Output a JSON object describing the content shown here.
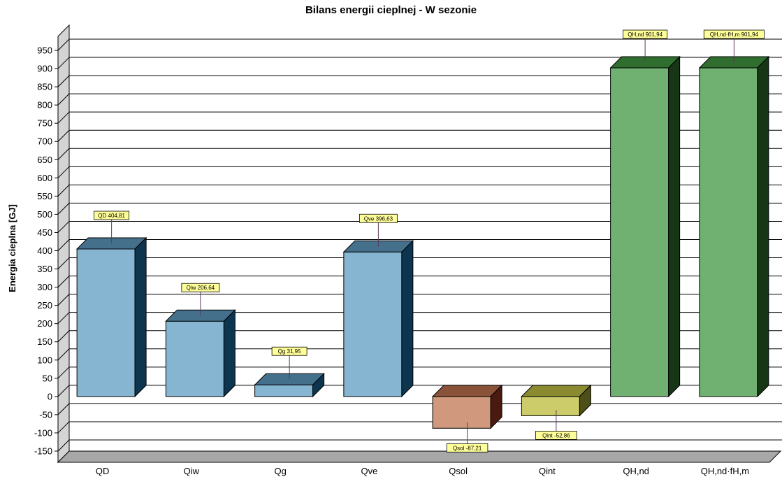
{
  "chart_data": {
    "type": "bar",
    "title": "Bilans energii cieplnej - W sezonie",
    "xlabel": "",
    "ylabel": "Energia cieplna [GJ]",
    "ylim": [
      -150,
      950
    ],
    "yticks": [
      950,
      900,
      850,
      800,
      750,
      700,
      650,
      600,
      550,
      500,
      450,
      400,
      350,
      300,
      250,
      200,
      150,
      100,
      50,
      0,
      -50,
      -100,
      -150
    ],
    "grid": true,
    "legend": "none",
    "bars": [
      {
        "category": "QD",
        "value": 404.81,
        "label": "QD 404,81",
        "color": "#85b5d0",
        "top_color": "#44708c",
        "side_color": "#0e3550"
      },
      {
        "category": "Qiw",
        "value": 206.64,
        "label": "Qiw 206,64",
        "color": "#85b5d0",
        "top_color": "#44708c",
        "side_color": "#0e3550"
      },
      {
        "category": "Qg",
        "value": 31.95,
        "label": "Qg 31,95",
        "color": "#85b5d0",
        "top_color": "#44708c",
        "side_color": "#0e3550"
      },
      {
        "category": "Qve",
        "value": 396.63,
        "label": "Qve 396,63",
        "color": "#85b5d0",
        "top_color": "#44708c",
        "side_color": "#0e3550"
      },
      {
        "category": "Qsol",
        "value": -87.21,
        "label": "Qsol -87,21",
        "color": "#d0987c",
        "top_color": "#8a5238",
        "side_color": "#4a1a10"
      },
      {
        "category": "Qint",
        "value": -52.86,
        "label": "Qint -52,86",
        "color": "#cccc6a",
        "top_color": "#8a8a30",
        "side_color": "#4e4e18"
      },
      {
        "category": "QH,nd",
        "value": 901.94,
        "label": "QH,nd 901,94",
        "color": "#70b070",
        "top_color": "#2f6e2f",
        "side_color": "#163616"
      },
      {
        "category": "QH,nd·fH,m",
        "value": 901.94,
        "label": "QH,nd·fH,m 901,94",
        "color": "#70b070",
        "top_color": "#2f6e2f",
        "side_color": "#163616"
      }
    ],
    "colors": {
      "grid": "#000000",
      "floor": "#a8a8a8",
      "wall": "#d4d4d4",
      "label_bg": "#ffff99"
    }
  }
}
